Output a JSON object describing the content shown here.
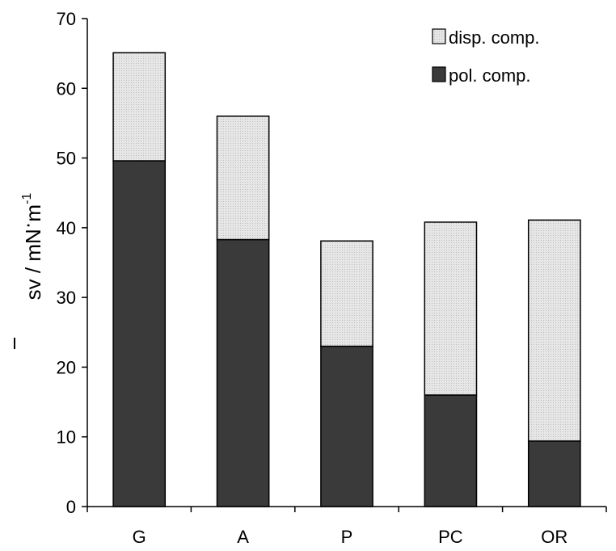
{
  "chart_data": {
    "type": "bar",
    "stacked": true,
    "categories": [
      "G",
      "A",
      "P",
      "PC",
      "OR"
    ],
    "series": [
      {
        "name": "pol. comp.",
        "values": [
          49.6,
          38.3,
          23.0,
          16.0,
          9.4
        ],
        "color": "#3a3a3a"
      },
      {
        "name": "disp. comp.",
        "values": [
          15.5,
          17.7,
          15.1,
          24.8,
          31.7
        ],
        "color": "#e2e2e2"
      }
    ],
    "ylim": [
      0,
      70
    ],
    "yticks": [
      "0",
      "10",
      "20",
      "30",
      "40",
      "50",
      "60",
      "70"
    ],
    "ylabel": "sv / mN·m-1",
    "ylabel_parts": {
      "main": "sv",
      "unit": " / mN",
      "dot": "·",
      "m": "m",
      "exp": "-1"
    },
    "xlabel": "",
    "title": "",
    "grid": false,
    "legend_position": "top-right"
  }
}
